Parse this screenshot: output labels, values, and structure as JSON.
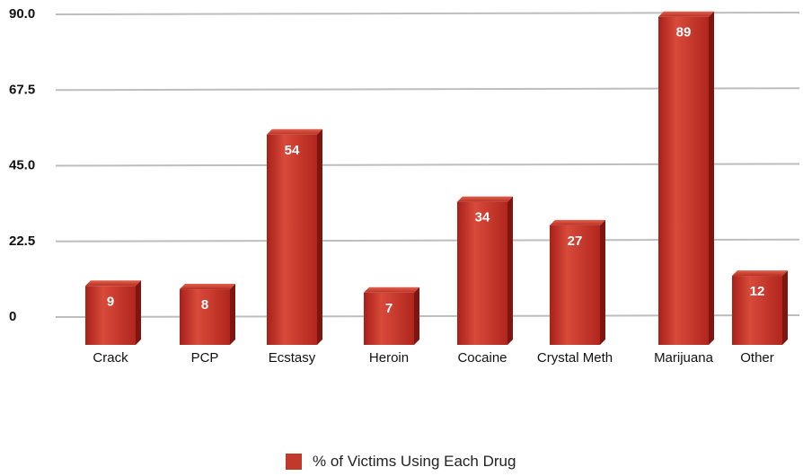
{
  "chart_data": {
    "type": "bar",
    "categories": [
      "Crack",
      "PCP",
      "Ecstasy",
      "Heroin",
      "Cocaine",
      "Crystal Meth",
      "Marijuana",
      "Other"
    ],
    "series": [
      {
        "name": "% of Victims Using Each Drug",
        "values": [
          9,
          8,
          54,
          7,
          34,
          27,
          89,
          12
        ]
      }
    ],
    "yticks": [
      "0",
      "22.5",
      "45.0",
      "67.5",
      "90.0"
    ],
    "ylim": [
      0,
      90
    ],
    "grid": true,
    "legend_position": "bottom",
    "bar_color": "#c0392b"
  }
}
